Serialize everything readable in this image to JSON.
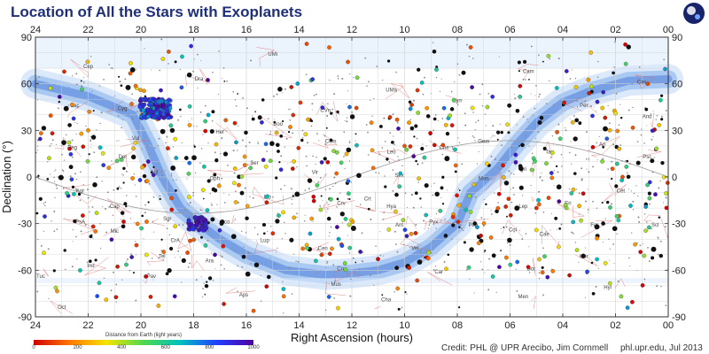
{
  "chart_data": {
    "type": "scatter",
    "title": "Location of All the Stars with Exoplanets",
    "xlabel": "Right Ascension (hours)",
    "ylabel": "Declination (°)",
    "xlim": [
      24,
      0
    ],
    "ylim": [
      -90,
      90
    ],
    "x_ticks": [
      "24",
      "22",
      "20",
      "18",
      "16",
      "14",
      "12",
      "10",
      "08",
      "06",
      "04",
      "02",
      "00"
    ],
    "y_ticks": [
      "90",
      "60",
      "30",
      "0",
      "-30",
      "-60",
      "-90"
    ],
    "grid": true,
    "colorbar": {
      "title": "Distance from Earth (light years)",
      "ticks": [
        "0",
        "200",
        "400",
        "600",
        "800",
        "1000"
      ],
      "range": [
        0,
        1000
      ]
    },
    "constellations": [
      {
        "name": "Cep",
        "ra": 22.0,
        "dec": 70
      },
      {
        "name": "Dra",
        "ra": 17.8,
        "dec": 62
      },
      {
        "name": "UMi",
        "ra": 15.0,
        "dec": 78
      },
      {
        "name": "Cam",
        "ra": 5.3,
        "dec": 67
      },
      {
        "name": "Cas",
        "ra": 1.0,
        "dec": 60
      },
      {
        "name": "UMa",
        "ra": 10.5,
        "dec": 55
      },
      {
        "name": "CVn",
        "ra": 13.0,
        "dec": 42
      },
      {
        "name": "Lyn",
        "ra": 8.0,
        "dec": 48
      },
      {
        "name": "Boo",
        "ra": 14.8,
        "dec": 33
      },
      {
        "name": "Cyg",
        "ra": 20.7,
        "dec": 43
      },
      {
        "name": "Lac",
        "ra": 22.5,
        "dec": 45
      },
      {
        "name": "Per",
        "ra": 3.2,
        "dec": 45
      },
      {
        "name": "And",
        "ra": 0.8,
        "dec": 38
      },
      {
        "name": "Com",
        "ra": 12.8,
        "dec": 22
      },
      {
        "name": "Leo",
        "ra": 10.5,
        "dec": 15
      },
      {
        "name": "Cnc",
        "ra": 8.5,
        "dec": 18
      },
      {
        "name": "Gem",
        "ra": 7.0,
        "dec": 22
      },
      {
        "name": "Tau",
        "ra": 4.5,
        "dec": 15
      },
      {
        "name": "Ari",
        "ra": 2.5,
        "dec": 20
      },
      {
        "name": "Psc",
        "ra": 0.8,
        "dec": 12
      },
      {
        "name": "Peg",
        "ra": 22.6,
        "dec": 18
      },
      {
        "name": "Her",
        "ra": 17.0,
        "dec": 28
      },
      {
        "name": "Vul",
        "ra": 20.2,
        "dec": 24
      },
      {
        "name": "Del",
        "ra": 20.7,
        "dec": 12
      },
      {
        "name": "Aql",
        "ra": 19.5,
        "dec": 2
      },
      {
        "name": "Oph",
        "ra": 17.2,
        "dec": -2
      },
      {
        "name": "Ser",
        "ra": 15.7,
        "dec": 8
      },
      {
        "name": "Vir",
        "ra": 13.4,
        "dec": 2
      },
      {
        "name": "Sex",
        "ra": 10.2,
        "dec": 0
      },
      {
        "name": "Mon",
        "ra": 7.0,
        "dec": -2
      },
      {
        "name": "Ori",
        "ra": 5.5,
        "dec": 4
      },
      {
        "name": "Cet",
        "ra": 1.8,
        "dec": -10
      },
      {
        "name": "Aqr",
        "ra": 22.3,
        "dec": -10
      },
      {
        "name": "Lib",
        "ra": 15.2,
        "dec": -14
      },
      {
        "name": "Hya",
        "ra": 10.5,
        "dec": -20
      },
      {
        "name": "Crt",
        "ra": 11.4,
        "dec": -15
      },
      {
        "name": "Crv",
        "ra": 12.4,
        "dec": -18
      },
      {
        "name": "Eri",
        "ra": 3.8,
        "dec": -18
      },
      {
        "name": "Lep",
        "ra": 5.5,
        "dec": -20
      },
      {
        "name": "Sco",
        "ra": 16.8,
        "dec": -30
      },
      {
        "name": "Sgr",
        "ra": 19.0,
        "dec": -28
      },
      {
        "name": "Cap",
        "ra": 21.0,
        "dec": -20
      },
      {
        "name": "PsA",
        "ra": 22.3,
        "dec": -30
      },
      {
        "name": "Mic",
        "ra": 21.0,
        "dec": -36
      },
      {
        "name": "Ant",
        "ra": 10.2,
        "dec": -32
      },
      {
        "name": "Pyx",
        "ra": 8.9,
        "dec": -30
      },
      {
        "name": "Pup",
        "ra": 7.4,
        "dec": -32
      },
      {
        "name": "Cen",
        "ra": 13.1,
        "dec": -47
      },
      {
        "name": "Lup",
        "ra": 15.3,
        "dec": -42
      },
      {
        "name": "Vel",
        "ra": 9.6,
        "dec": -47
      },
      {
        "name": "Car",
        "ra": 8.7,
        "dec": -62
      },
      {
        "name": "Cru",
        "ra": 12.4,
        "dec": -60
      },
      {
        "name": "Mus",
        "ra": 12.6,
        "dec": -70
      },
      {
        "name": "Aps",
        "ra": 16.1,
        "dec": -77
      },
      {
        "name": "Pav",
        "ra": 19.6,
        "dec": -65
      },
      {
        "name": "Tel",
        "ra": 19.2,
        "dec": -52
      },
      {
        "name": "Ind",
        "ra": 21.9,
        "dec": -58
      },
      {
        "name": "Tuc",
        "ra": 23.8,
        "dec": -65
      },
      {
        "name": "Hyi",
        "ra": 2.3,
        "dec": -72
      },
      {
        "name": "Dor",
        "ra": 5.2,
        "dec": -60
      },
      {
        "name": "Col",
        "ra": 5.9,
        "dec": -35
      },
      {
        "name": "Cae",
        "ra": 4.7,
        "dec": -38
      },
      {
        "name": "Hor",
        "ra": 3.2,
        "dec": -52
      },
      {
        "name": "For",
        "ra": 2.8,
        "dec": -32
      },
      {
        "name": "Scl",
        "ra": 0.5,
        "dec": -32
      },
      {
        "name": "Men",
        "ra": 5.5,
        "dec": -78
      },
      {
        "name": "Cha",
        "ra": 10.7,
        "dec": -80
      },
      {
        "name": "Oct",
        "ra": 23.0,
        "dec": -85
      },
      {
        "name": "CrA",
        "ra": 18.7,
        "dec": -42
      },
      {
        "name": "Ara",
        "ra": 17.4,
        "dec": -55
      }
    ],
    "series_note": "Stars with exoplanets; point color encodes distance from Earth (light years)",
    "points_sample": [
      {
        "ra": 19.4,
        "dec": 44,
        "dist": 950
      },
      {
        "ra": 19.2,
        "dec": 46,
        "dist": 1000
      },
      {
        "ra": 19.6,
        "dec": 42,
        "dist": 900
      },
      {
        "ra": 19.0,
        "dec": 40,
        "dist": 980
      },
      {
        "ra": 17.8,
        "dec": -29,
        "dist": 1000
      },
      {
        "ra": 17.9,
        "dec": -31,
        "dist": 980
      },
      {
        "ra": 10.0,
        "dec": 20,
        "dist": 120
      },
      {
        "ra": 14.2,
        "dec": 10,
        "dist": 300
      },
      {
        "ra": 5.0,
        "dec": -20,
        "dist": 60
      },
      {
        "ra": 2.5,
        "dec": 10,
        "dist": 450
      },
      {
        "ra": 12.5,
        "dec": -40,
        "dist": 700
      },
      {
        "ra": 22.0,
        "dec": 30,
        "dist": 200
      }
    ]
  },
  "page": {
    "title": "Location of All the Stars with Exoplanets",
    "credit": "Credit: PHL @ UPR Arecibo, Jim Cornmell",
    "source": "phl.upr.edu, Jul 2013",
    "colors": {
      "band_outer": "#dbe9fb",
      "band_mid": "#a9c9f3",
      "band_inner": "#6f98e0",
      "grid": "#cfcfcf",
      "title": "#1f2f7a"
    }
  }
}
